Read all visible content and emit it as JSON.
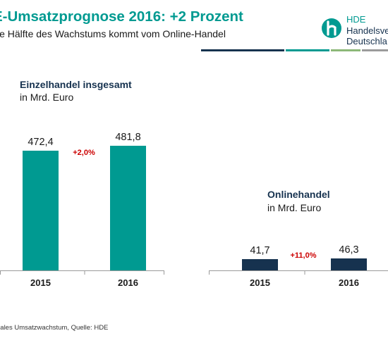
{
  "header": {
    "title": "E-Umsatzprognose 2016: +2 Prozent",
    "subtitle": "ie Hälfte des Wachstums kommt vom Online-Handel"
  },
  "logo": {
    "abbr": "HDE",
    "name_line1": "Handelsve",
    "name_line2": "Deutschla",
    "colors": [
      "#16324f",
      "#009a91",
      "#8cb878",
      "#9b9b9b"
    ]
  },
  "footnote": "nales Umsatzwachstum, Quelle: HDE",
  "chart_data": [
    {
      "type": "bar",
      "title": "Einzelhandel insgesamt",
      "subtitle": "in Mrd. Euro",
      "categories": [
        "2015",
        "2016"
      ],
      "values": [
        472.4,
        481.8
      ],
      "value_labels": [
        "472,4",
        "481,8"
      ],
      "annotation": "+2,0%",
      "bar_color": "#009a91",
      "annotation_color": "#cc0000"
    },
    {
      "type": "bar",
      "title": "Onlinehandel",
      "subtitle": "in Mrd. Euro",
      "categories": [
        "2015",
        "2016"
      ],
      "values": [
        41.7,
        46.3
      ],
      "value_labels": [
        "41,7",
        "46,3"
      ],
      "annotation": "+11,0%",
      "bar_color": "#16324f",
      "annotation_color": "#cc0000"
    }
  ]
}
